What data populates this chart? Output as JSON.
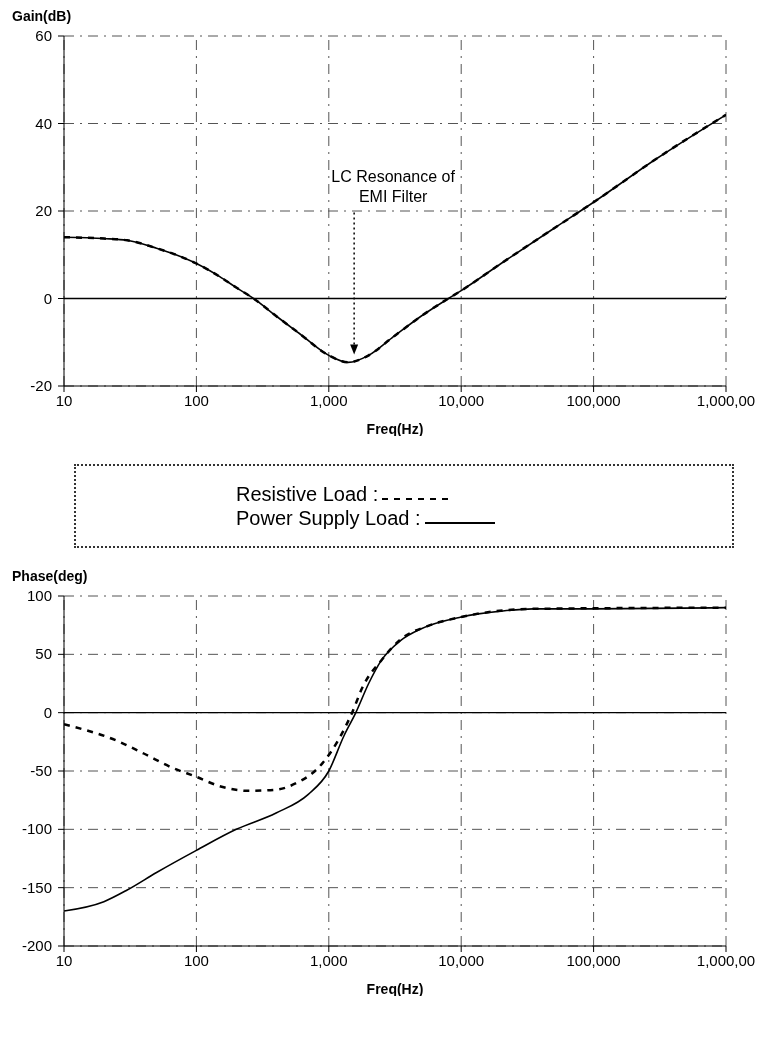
{
  "chart_data": [
    {
      "type": "line",
      "ylabel": "Gain(dB)",
      "xlabel": "Freq(Hz)",
      "log": "x",
      "grid": true,
      "legend": "bottom",
      "marker": "none",
      "xlim": [
        10,
        1000000
      ],
      "xticks": [
        {
          "value": 10,
          "label": "10"
        },
        {
          "value": 100,
          "label": "100"
        },
        {
          "value": 1000,
          "label": "1,000"
        },
        {
          "value": 10000,
          "label": "10,000"
        },
        {
          "value": 100000,
          "label": "100,000"
        },
        {
          "value": 1000000,
          "label": "1,000,00"
        }
      ],
      "ylim": [
        -20,
        60
      ],
      "yticks": [
        -20,
        0,
        20,
        40,
        60
      ],
      "x": [
        10,
        20,
        30,
        50,
        70,
        100,
        150,
        200,
        270,
        400,
        600,
        1000,
        1400,
        2000,
        3000,
        5000,
        8000,
        10000,
        20000,
        50000,
        100000,
        300000,
        1000000
      ],
      "series": [
        {
          "name": "Power Supply Load :",
          "color": "#000000",
          "line_style": "solid",
          "values": [
            14,
            13.7,
            13.3,
            11.5,
            10,
            8,
            5,
            2.5,
            0,
            -4,
            -8,
            -13,
            -14.6,
            -13,
            -9,
            -4,
            0,
            1.8,
            8,
            16,
            22,
            32,
            42
          ]
        },
        {
          "name": "Resistive Load :",
          "color": "#000000",
          "line_style": "dashed",
          "values": [
            14,
            13.7,
            13.3,
            11.5,
            10,
            8,
            5,
            2.5,
            0,
            -4,
            -8,
            -13,
            -14.6,
            -13,
            -9,
            -4,
            0,
            1.8,
            8,
            16,
            22,
            32,
            42
          ]
        }
      ],
      "ref_lines": [
        {
          "axis": "y",
          "value": 0,
          "color": "#000000"
        }
      ],
      "annotations": [
        "LC Resonance of\nEMI Filter"
      ]
    },
    {
      "type": "line",
      "ylabel": "Phase(deg)",
      "xlabel": "Freq(Hz)",
      "log": "x",
      "grid": true,
      "marker": "none",
      "xlim": [
        10,
        1000000
      ],
      "xticks": [
        {
          "value": 10,
          "label": "10"
        },
        {
          "value": 100,
          "label": "100"
        },
        {
          "value": 1000,
          "label": "1,000"
        },
        {
          "value": 10000,
          "label": "10,000"
        },
        {
          "value": 100000,
          "label": "100,000"
        },
        {
          "value": 1000000,
          "label": "1,000,00"
        }
      ],
      "ylim": [
        -200,
        100
      ],
      "yticks": [
        -200,
        -150,
        -100,
        -50,
        0,
        50,
        100
      ],
      "series": [
        {
          "color": "#000000",
          "line_style": "solid",
          "x": [
            10,
            20,
            30,
            50,
            100,
            200,
            400,
            700,
            1000,
            1300,
            1600,
            2000,
            2500,
            3500,
            5000,
            10000,
            20000,
            35000,
            100000,
            1000000
          ],
          "values": [
            -170,
            -162,
            -152,
            -137,
            -118,
            -100,
            -86,
            -70,
            -50,
            -20,
            0,
            25,
            45,
            62,
            72,
            82,
            87,
            89,
            89,
            90
          ]
        },
        {
          "color": "#000000",
          "line_style": "dashed",
          "x": [
            10,
            25,
            40,
            65,
            100,
            150,
            250,
            400,
            600,
            750,
            900,
            1200,
            1500,
            1800,
            2500,
            3500,
            5500,
            10000,
            35000,
            1000000
          ],
          "values": [
            -10,
            -24,
            -35,
            -47,
            -55,
            -63,
            -67,
            -66,
            -59,
            -52,
            -43,
            -22,
            0,
            22,
            45,
            63,
            74,
            82,
            89,
            90
          ]
        }
      ],
      "ref_lines": [
        {
          "axis": "y",
          "value": 0,
          "color": "#000000"
        }
      ]
    }
  ]
}
